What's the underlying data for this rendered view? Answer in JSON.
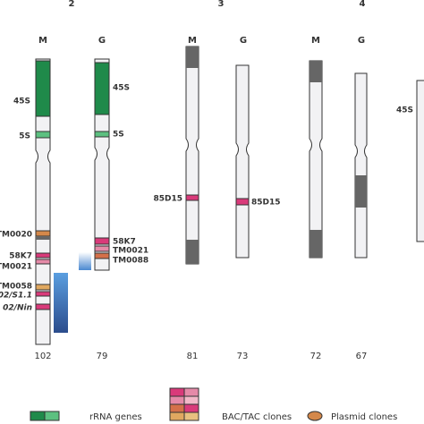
{
  "groups": [
    "2",
    "3",
    "4"
  ],
  "chromosomes": [
    {
      "label": "M",
      "length": "102"
    },
    {
      "label": "G",
      "length": "79"
    },
    {
      "label": "M",
      "length": "81"
    },
    {
      "label": "G",
      "length": "73"
    },
    {
      "label": "M",
      "length": "72"
    },
    {
      "label": "G",
      "length": "67"
    }
  ],
  "annotations": {
    "c2m": [
      "45S",
      "5S",
      "TM0020",
      "58K7",
      "TM0021",
      "TM0058",
      "02/S1.1",
      "02/Nin"
    ],
    "c2g": [
      "45S",
      "5S",
      "58K7",
      "TM0021",
      "TM0088"
    ],
    "c3m": [
      "85D15"
    ],
    "c3g": [
      "85D15"
    ],
    "extra": [
      "45S"
    ]
  },
  "legend": [
    "rRNA genes",
    "BAC/TAC clones",
    "Plasmid clones"
  ]
}
